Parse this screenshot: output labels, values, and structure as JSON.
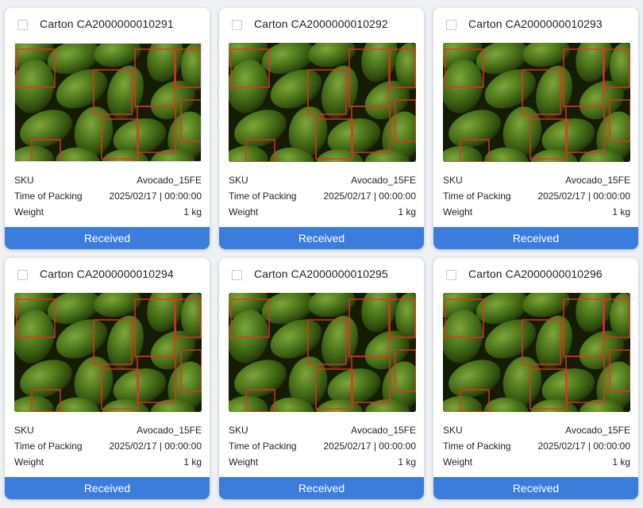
{
  "labels": {
    "sku": "SKU",
    "time_of_packing": "Time of Packing",
    "weight": "Weight"
  },
  "colors": {
    "status_bar": "#3b7ddd",
    "box": "#e8311f"
  },
  "cards": [
    {
      "title": "Carton CA2000000010291",
      "sku": "Avocado_15FE",
      "time": "2025/02/17 | 00:00:00",
      "weight": "1 kg",
      "status": "Received",
      "photo": "avocado-photo"
    },
    {
      "title": "Carton CA2000000010292",
      "sku": "Avocado_15FE",
      "time": "2025/02/17 | 00:00:00",
      "weight": "1 kg",
      "status": "Received",
      "photo": "avocado-photo"
    },
    {
      "title": "Carton CA2000000010293",
      "sku": "Avocado_15FE",
      "time": "2025/02/17 | 00:00:00",
      "weight": "1 kg",
      "status": "Received",
      "photo": "avocado-photo"
    },
    {
      "title": "Carton CA2000000010294",
      "sku": "Avocado_15FE",
      "time": "2025/02/17 | 00:00:00",
      "weight": "1 kg",
      "status": "Received",
      "photo": "avocado-photo"
    },
    {
      "title": "Carton CA2000000010295",
      "sku": "Avocado_15FE",
      "time": "2025/02/17 | 00:00:00",
      "weight": "1 kg",
      "status": "Received",
      "photo": "avocado-photo"
    },
    {
      "title": "Carton CA2000000010296",
      "sku": "Avocado_15FE",
      "time": "2025/02/17 | 00:00:00",
      "weight": "1 kg",
      "status": "Received",
      "photo": "avocado-photo"
    }
  ]
}
